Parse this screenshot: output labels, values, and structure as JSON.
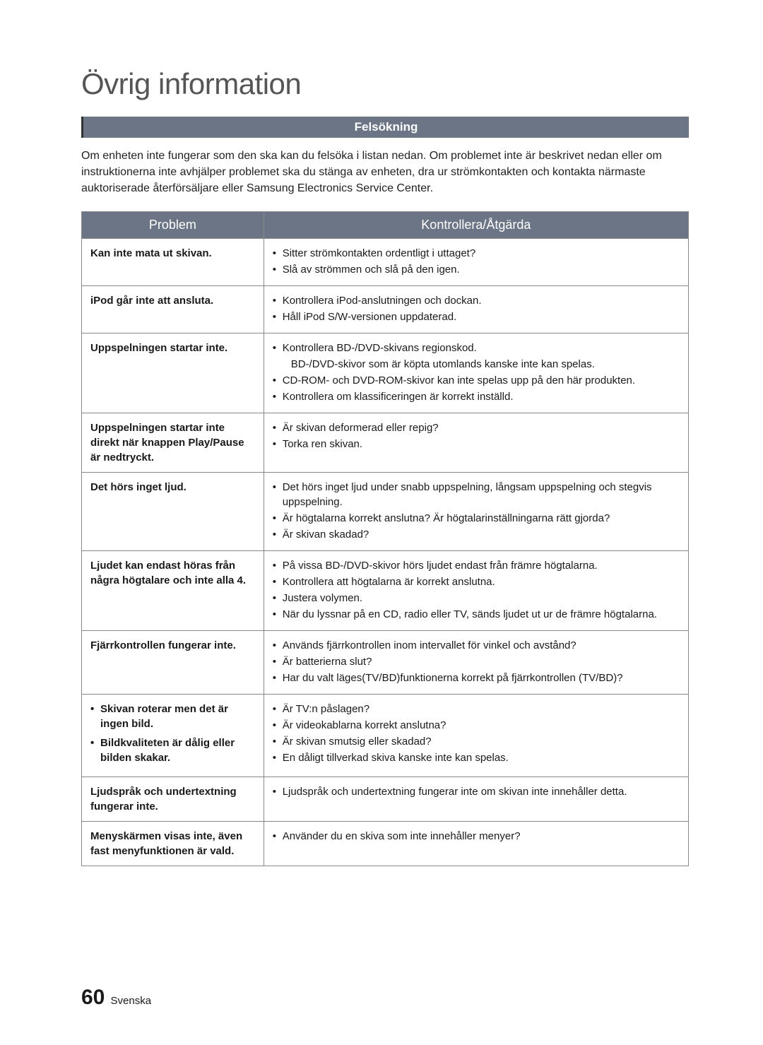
{
  "page_title": "Övrig information",
  "section_header": "Felsökning",
  "intro_text": "Om enheten inte fungerar som den ska kan du felsöka i listan nedan. Om problemet inte är beskrivet nedan eller om instruktionerna inte avhjälper problemet ska du stänga av enheten, dra ur strömkontakten och kontakta närmaste auktoriserade återförsäljare eller Samsung Electronics Service Center.",
  "table": {
    "header_problem": "Problem",
    "header_action": "Kontrollera/Åtgärda",
    "rows": [
      {
        "problem": "Kan inte mata ut skivan.",
        "actions": [
          "Sitter strömkontakten ordentligt i uttaget?",
          "Slå av strömmen och slå på den igen."
        ]
      },
      {
        "problem": "iPod går inte att ansluta.",
        "actions": [
          "Kontrollera iPod-anslutningen och dockan.",
          "Håll iPod S/W-versionen uppdaterad."
        ]
      },
      {
        "problem": "Uppspelningen startar inte.",
        "actions": [
          "Kontrollera BD-/DVD-skivans regionskod.",
          {
            "indent": true,
            "text": "BD-/DVD-skivor som är köpta utomlands kanske inte kan spelas."
          },
          "CD-ROM- och DVD-ROM-skivor kan inte spelas upp på den här produkten.",
          "Kontrollera om klassificeringen är korrekt inställd."
        ]
      },
      {
        "problem": "Uppspelningen startar inte direkt när knappen Play/Pause är nedtryckt.",
        "actions": [
          "Är skivan deformerad eller repig?",
          "Torka ren skivan."
        ]
      },
      {
        "problem": "Det hörs inget ljud.",
        "actions": [
          "Det hörs inget ljud under snabb uppspelning, långsam uppspelning och stegvis uppspelning.",
          "Är högtalarna korrekt anslutna? Är högtalarinställningarna rätt gjorda?",
          "Är skivan skadad?"
        ]
      },
      {
        "problem": "Ljudet kan endast höras från några högtalare och inte alla 4.",
        "actions": [
          "På vissa BD-/DVD-skivor hörs ljudet endast från främre högtalarna.",
          "Kontrollera att högtalarna är korrekt anslutna.",
          "Justera volymen.",
          "När du lyssnar på en CD, radio eller TV, sänds ljudet ut ur de främre högtalarna."
        ]
      },
      {
        "problem": "Fjärrkontrollen fungerar inte.",
        "actions": [
          "Används fjärrkontrollen inom intervallet för vinkel och avstånd?",
          "Är batterierna slut?",
          "Har du valt läges(TV/BD)funktionerna korrekt på fjärrkontrollen (TV/BD)?"
        ]
      },
      {
        "problem_list": [
          "Skivan roterar men det är ingen bild.",
          "Bildkvaliteten är dålig eller bilden skakar."
        ],
        "actions": [
          "Är TV:n påslagen?",
          "Är videokablarna korrekt anslutna?",
          "Är skivan smutsig eller skadad?",
          "En dåligt tillverkad skiva kanske inte kan spelas."
        ]
      },
      {
        "problem": "Ljudspråk och undertextning fungerar inte.",
        "actions": [
          "Ljudspråk och undertextning fungerar inte om skivan inte innehåller detta."
        ]
      },
      {
        "problem": "Menyskärmen visas inte, även fast menyfunktionen är vald.",
        "actions": [
          "Använder du en skiva som inte innehåller menyer?"
        ]
      }
    ]
  },
  "footer": {
    "page_number": "60",
    "language": "Svenska"
  },
  "colors": {
    "header_bg": "#6b7585",
    "header_text": "#ffffff",
    "border": "#888888",
    "text": "#1a1a1a",
    "title_text": "#555555"
  }
}
